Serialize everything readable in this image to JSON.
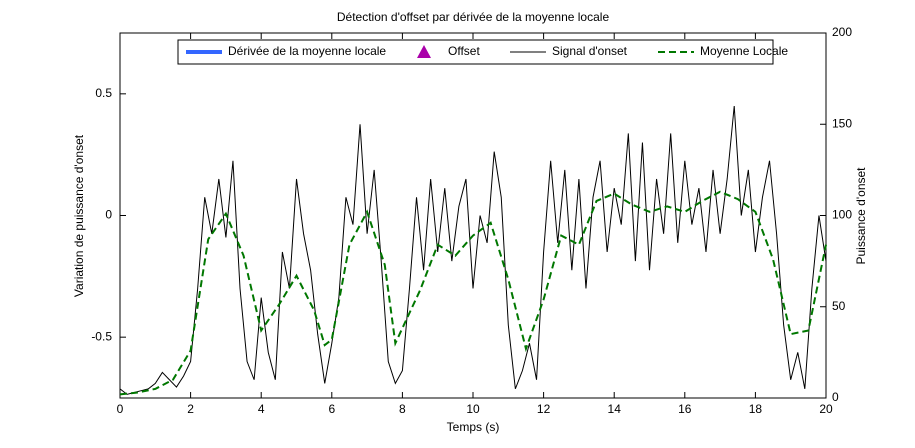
{
  "chart_data": {
    "type": "line",
    "title": "Détection d'offset par dérivée de la moyenne locale",
    "xlabel": "Temps (s)",
    "ylabel": "Variation de puissance d'onset",
    "y2label": "Puissance d'onset",
    "xlim": [
      0,
      20
    ],
    "xticks": [
      0,
      2,
      4,
      6,
      8,
      10,
      12,
      14,
      16,
      18,
      20
    ],
    "ylim": [
      -0.75,
      0.75
    ],
    "yticks": [
      -0.5,
      0,
      0.5
    ],
    "y2lim": [
      0,
      200
    ],
    "y2ticks": [
      0,
      50,
      100,
      150,
      200
    ],
    "legend": "top",
    "series": [
      {
        "name": "Dérivée de la moyenne locale",
        "color": "#3366ff",
        "style": "line",
        "x": [],
        "values": []
      },
      {
        "name": "Offset",
        "color": "#aa00aa",
        "style": "triangle",
        "x": [],
        "values": []
      },
      {
        "name": "Signal d'onset",
        "color": "#000000",
        "style": "line",
        "axis": "y2",
        "x": [
          0,
          0.2,
          0.4,
          0.6,
          0.8,
          1,
          1.2,
          1.4,
          1.6,
          1.8,
          2,
          2.2,
          2.4,
          2.6,
          2.8,
          3,
          3.2,
          3.4,
          3.6,
          3.8,
          4,
          4.2,
          4.4,
          4.6,
          4.8,
          5,
          5.2,
          5.4,
          5.6,
          5.8,
          6,
          6.2,
          6.4,
          6.6,
          6.8,
          7,
          7.2,
          7.4,
          7.6,
          7.8,
          8,
          8.2,
          8.4,
          8.6,
          8.8,
          9,
          9.2,
          9.4,
          9.6,
          9.8,
          10,
          10.2,
          10.4,
          10.6,
          10.8,
          11,
          11.2,
          11.4,
          11.6,
          11.8,
          12,
          12.2,
          12.4,
          12.6,
          12.8,
          13,
          13.2,
          13.4,
          13.6,
          13.8,
          14,
          14.2,
          14.4,
          14.6,
          14.8,
          15,
          15.2,
          15.4,
          15.6,
          15.8,
          16,
          16.2,
          16.4,
          16.6,
          16.8,
          17,
          17.2,
          17.4,
          17.6,
          17.8,
          18,
          18.2,
          18.4,
          18.6,
          18.8,
          19,
          19.2,
          19.4,
          19.6,
          19.8,
          20
        ],
        "values": [
          5,
          2,
          3,
          4,
          5,
          8,
          14,
          10,
          6,
          12,
          20,
          60,
          110,
          90,
          120,
          88,
          130,
          60,
          20,
          10,
          55,
          25,
          10,
          80,
          60,
          120,
          90,
          70,
          35,
          8,
          30,
          55,
          110,
          95,
          150,
          90,
          125,
          75,
          20,
          8,
          15,
          60,
          110,
          70,
          120,
          80,
          115,
          75,
          105,
          120,
          60,
          100,
          85,
          135,
          110,
          40,
          5,
          15,
          30,
          10,
          80,
          130,
          85,
          125,
          70,
          120,
          60,
          110,
          130,
          80,
          115,
          95,
          145,
          75,
          140,
          70,
          120,
          90,
          145,
          85,
          130,
          95,
          115,
          80,
          125,
          90,
          120,
          160,
          100,
          125,
          80,
          110,
          130,
          90,
          40,
          10,
          25,
          5,
          60,
          100,
          75
        ]
      },
      {
        "name": "Moyenne Locale",
        "color": "#007700",
        "style": "dashed",
        "axis": "y2",
        "x": [
          0,
          0.5,
          1,
          1.5,
          2,
          2.5,
          3,
          3.5,
          4,
          4.5,
          5,
          5.5,
          5.8,
          6,
          6.5,
          7,
          7.5,
          7.8,
          8.5,
          9,
          9.5,
          10,
          10.5,
          11,
          11.5,
          12,
          12.5,
          13,
          13.5,
          14,
          14.5,
          15,
          15.5,
          16,
          16.5,
          17,
          17.5,
          18,
          18.5,
          19,
          19.5,
          20
        ],
        "values": [
          2,
          3,
          5,
          10,
          26,
          87,
          101,
          78,
          37,
          51,
          67,
          48,
          29,
          32,
          84,
          102,
          73,
          30,
          59,
          84,
          78,
          89,
          96,
          65,
          27,
          54,
          89,
          84,
          108,
          112,
          106,
          102,
          105,
          102,
          108,
          113,
          109,
          102,
          76,
          35,
          37,
          84
        ]
      }
    ]
  }
}
